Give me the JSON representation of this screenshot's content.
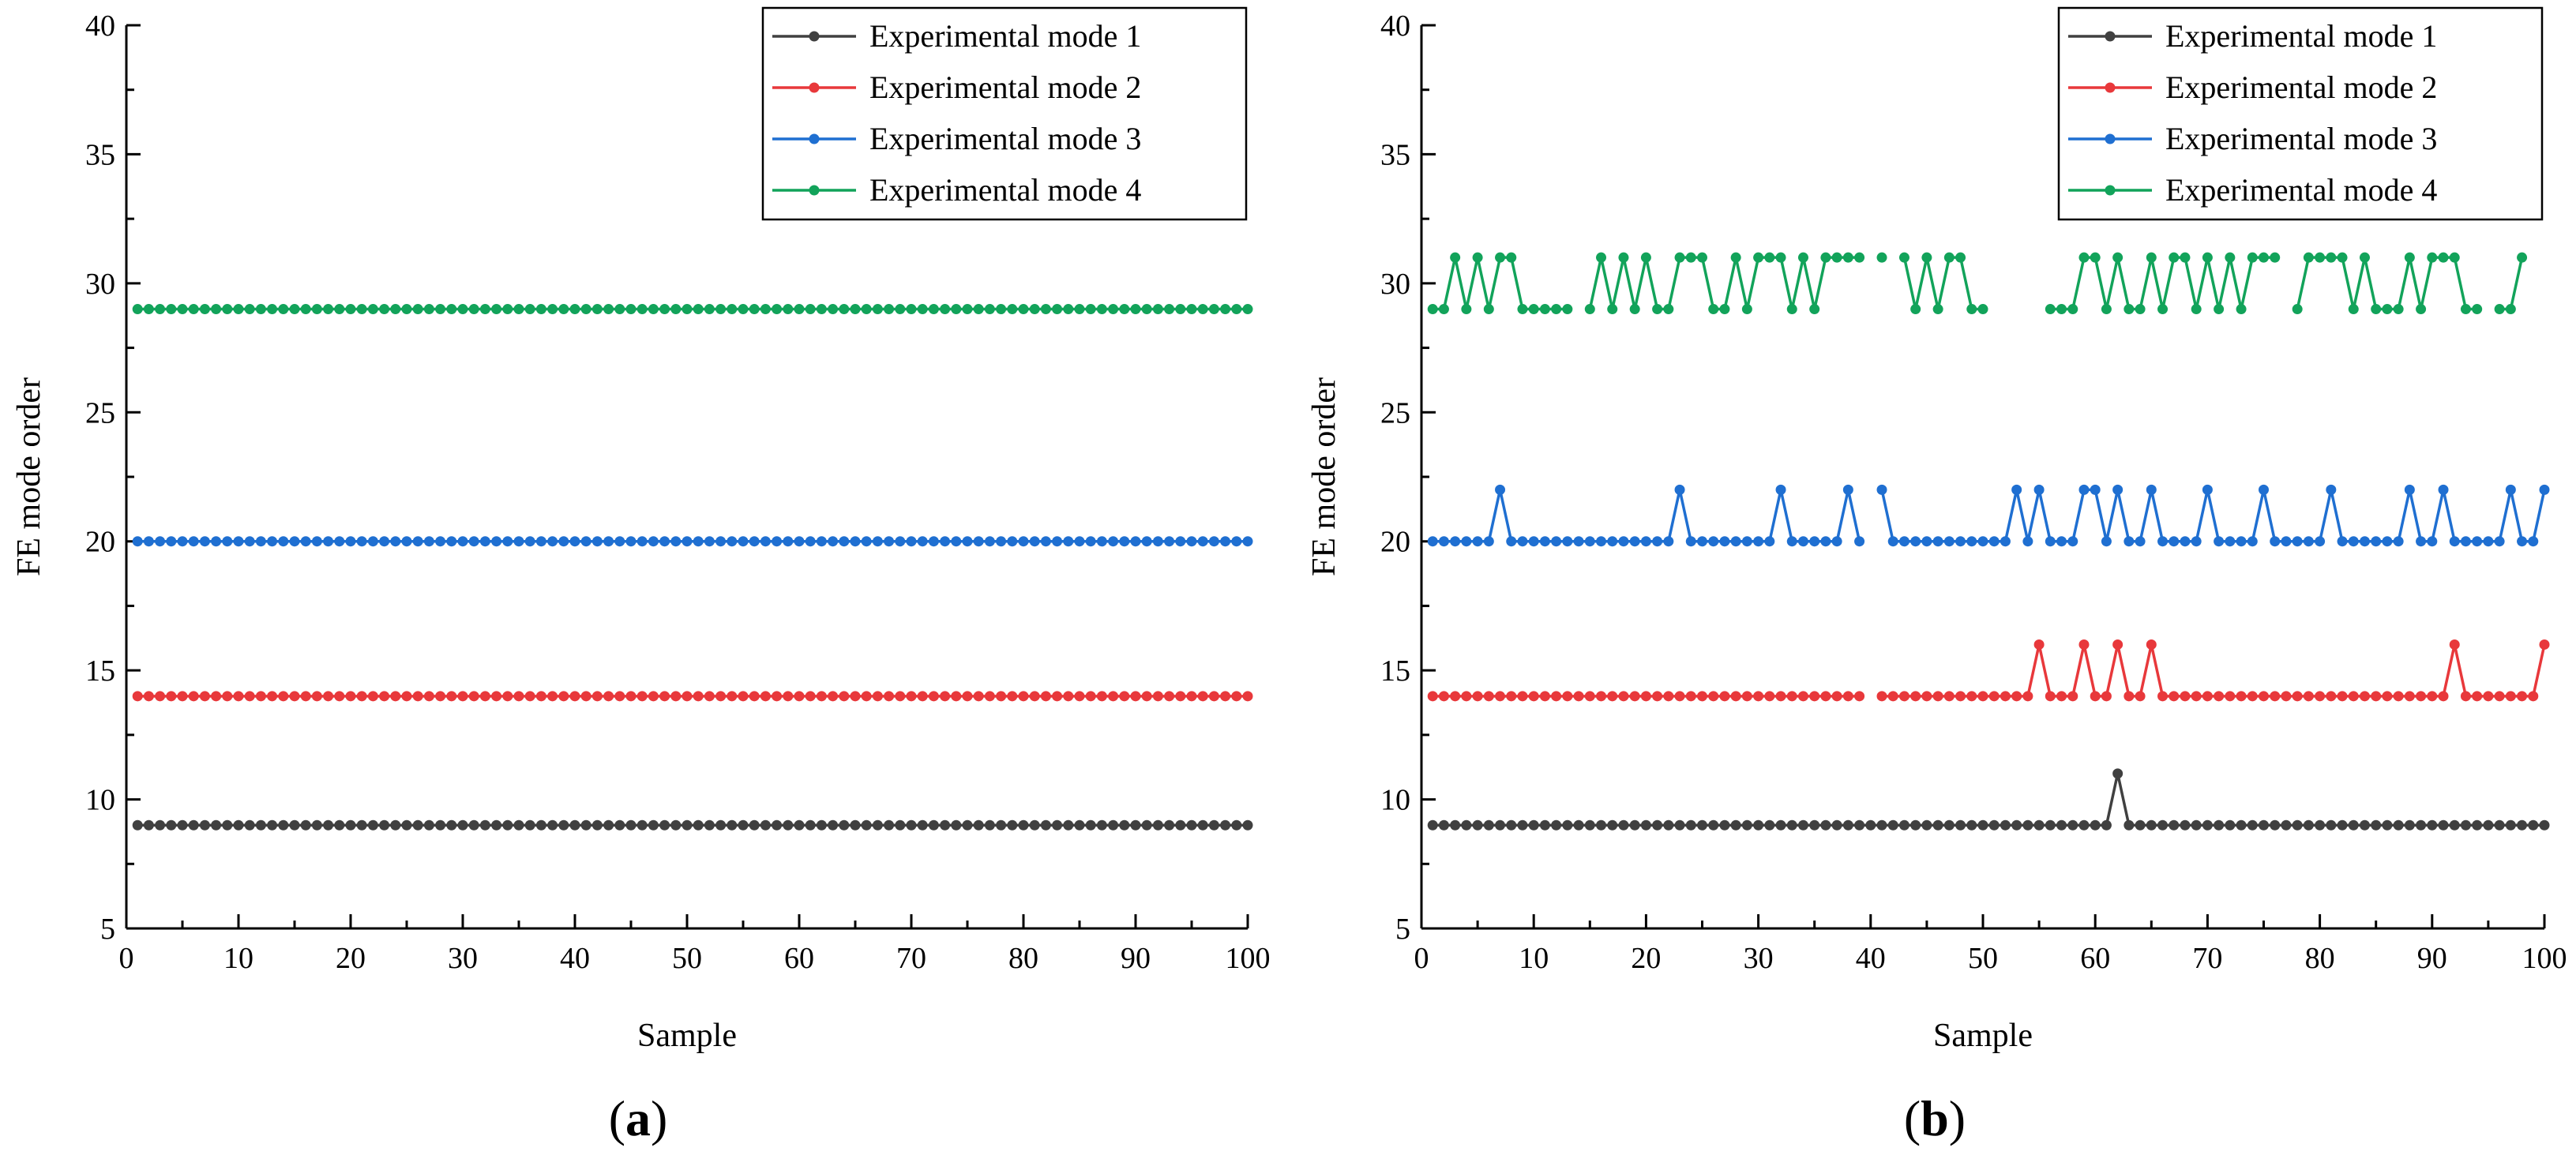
{
  "chart_data": [
    {
      "type": "line",
      "panel_label": "(a)",
      "panel_label_parts": [
        "(",
        "a",
        ")"
      ],
      "xlabel": "Sample",
      "ylabel": "FE mode order",
      "xlim": [
        0,
        100
      ],
      "ylim": [
        5,
        40
      ],
      "xticks": [
        0,
        10,
        20,
        30,
        40,
        50,
        60,
        70,
        80,
        90,
        100
      ],
      "yticks": [
        5,
        10,
        15,
        20,
        25,
        30,
        35,
        40
      ],
      "legend_position": "top-right",
      "grid": false,
      "series": [
        {
          "name": "Experimental mode 1",
          "color": "#404040",
          "constant": 9,
          "values": []
        },
        {
          "name": "Experimental mode 2",
          "color": "#e8383b",
          "constant": 14,
          "values": []
        },
        {
          "name": "Experimental mode 3",
          "color": "#1f6fd1",
          "constant": 20,
          "values": []
        },
        {
          "name": "Experimental mode 4",
          "color": "#12a35a",
          "constant": 29,
          "values": []
        }
      ]
    },
    {
      "type": "line",
      "panel_label": "(b)",
      "panel_label_parts": [
        "(",
        "b",
        ")"
      ],
      "xlabel": "Sample",
      "ylabel": "FE mode order",
      "xlim": [
        0,
        100
      ],
      "ylim": [
        5,
        40
      ],
      "xticks": [
        0,
        10,
        20,
        30,
        40,
        50,
        60,
        70,
        80,
        90,
        100
      ],
      "yticks": [
        5,
        10,
        15,
        20,
        25,
        30,
        35,
        40
      ],
      "legend_position": "top-right",
      "grid": false,
      "series": [
        {
          "name": "Experimental mode 1",
          "color": "#404040",
          "constant": 9,
          "values": [
            9,
            9,
            9,
            9,
            9,
            9,
            9,
            9,
            9,
            9,
            9,
            9,
            9,
            9,
            9,
            9,
            9,
            9,
            9,
            9,
            9,
            9,
            9,
            9,
            9,
            9,
            9,
            9,
            9,
            9,
            9,
            9,
            9,
            9,
            9,
            9,
            9,
            9,
            9,
            9,
            9,
            9,
            9,
            9,
            9,
            9,
            9,
            9,
            9,
            9,
            9,
            9,
            9,
            9,
            9,
            9,
            9,
            9,
            9,
            9,
            9,
            11,
            9,
            9,
            9,
            9,
            9,
            9,
            9,
            9,
            9,
            9,
            9,
            9,
            9,
            9,
            9,
            9,
            9,
            9,
            9,
            9,
            9,
            9,
            9,
            9,
            9,
            9,
            9,
            9,
            9,
            9,
            9,
            9,
            9,
            9,
            9,
            9,
            9,
            9
          ]
        },
        {
          "name": "Experimental mode 2",
          "color": "#e8383b",
          "constant": 14,
          "values": [
            14,
            14,
            14,
            14,
            14,
            14,
            14,
            14,
            14,
            14,
            14,
            14,
            14,
            14,
            14,
            14,
            14,
            14,
            14,
            14,
            14,
            14,
            14,
            14,
            14,
            14,
            14,
            14,
            14,
            14,
            14,
            14,
            14,
            14,
            14,
            14,
            14,
            14,
            14,
            null,
            14,
            14,
            14,
            14,
            14,
            14,
            14,
            14,
            14,
            14,
            14,
            14,
            14,
            14,
            16,
            14,
            14,
            14,
            16,
            14,
            14,
            16,
            14,
            14,
            16,
            14,
            14,
            14,
            14,
            14,
            14,
            14,
            14,
            14,
            14,
            14,
            14,
            14,
            14,
            14,
            14,
            14,
            14,
            14,
            14,
            14,
            14,
            14,
            14,
            14,
            14,
            16,
            14,
            14,
            14,
            14,
            14,
            14,
            14,
            16
          ]
        },
        {
          "name": "Experimental mode 3",
          "color": "#1f6fd1",
          "constant": 20,
          "values": [
            20,
            20,
            20,
            20,
            20,
            20,
            22,
            20,
            20,
            20,
            20,
            20,
            20,
            20,
            20,
            20,
            20,
            20,
            20,
            20,
            20,
            20,
            22,
            20,
            20,
            20,
            20,
            20,
            20,
            20,
            20,
            22,
            20,
            20,
            20,
            20,
            20,
            22,
            20,
            null,
            22,
            20,
            20,
            20,
            20,
            20,
            20,
            20,
            20,
            20,
            20,
            20,
            22,
            20,
            22,
            20,
            20,
            20,
            22,
            22,
            20,
            22,
            20,
            20,
            22,
            20,
            20,
            20,
            20,
            22,
            20,
            20,
            20,
            20,
            22,
            20,
            20,
            20,
            20,
            20,
            22,
            20,
            20,
            20,
            20,
            20,
            20,
            22,
            20,
            20,
            22,
            20,
            20,
            20,
            20,
            20,
            22,
            20,
            20,
            22
          ]
        },
        {
          "name": "Experimental mode 4",
          "color": "#12a35a",
          "constant": 29,
          "values": [
            29,
            29,
            31,
            29,
            31,
            29,
            31,
            31,
            29,
            29,
            29,
            29,
            29,
            null,
            29,
            31,
            29,
            31,
            29,
            31,
            29,
            29,
            31,
            31,
            31,
            29,
            29,
            31,
            29,
            31,
            31,
            31,
            29,
            31,
            29,
            31,
            31,
            31,
            31,
            null,
            31,
            null,
            31,
            29,
            31,
            29,
            31,
            31,
            29,
            29,
            null,
            null,
            null,
            null,
            null,
            29,
            29,
            29,
            31,
            31,
            29,
            31,
            29,
            29,
            31,
            29,
            31,
            31,
            29,
            31,
            29,
            31,
            29,
            31,
            31,
            31,
            null,
            29,
            31,
            31,
            31,
            31,
            29,
            31,
            29,
            29,
            29,
            31,
            29,
            31,
            31,
            31,
            29,
            29,
            null,
            29,
            29,
            31
          ]
        }
      ]
    }
  ]
}
